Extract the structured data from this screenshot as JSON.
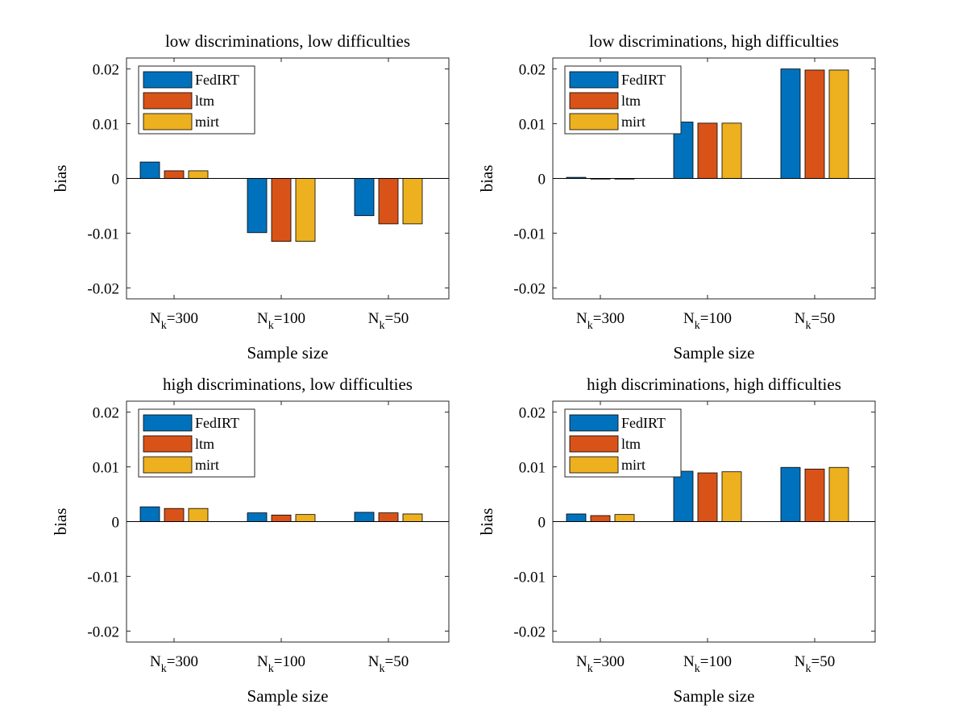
{
  "figure": {
    "xlabel": "Sample size",
    "ylabel": "bias"
  },
  "colors": {
    "FedIRT": "#0072BD",
    "ltm": "#D95319",
    "mirt": "#EDB120"
  },
  "chart_data": [
    {
      "type": "bar",
      "title": "low discriminations, low difficulties",
      "xlabel": "Sample size",
      "ylabel": "bias",
      "categories": [
        "N_k=300",
        "N_k=100",
        "N_k=50"
      ],
      "category_labels": [
        {
          "base": "N",
          "sub": "k",
          "rest": "=300"
        },
        {
          "base": "N",
          "sub": "k",
          "rest": "=100"
        },
        {
          "base": "N",
          "sub": "k",
          "rest": "=50"
        }
      ],
      "ylim": [
        -0.022,
        0.022
      ],
      "yticks": [
        0.02,
        0.01,
        0,
        -0.01,
        -0.02
      ],
      "ytick_labels": [
        "0.02",
        "0.01",
        "0",
        "-0.01",
        "-0.02"
      ],
      "legend": "top-left",
      "series": [
        {
          "name": "FedIRT",
          "values": [
            0.003,
            -0.0099,
            -0.0068
          ]
        },
        {
          "name": "ltm",
          "values": [
            0.0014,
            -0.0115,
            -0.0083
          ]
        },
        {
          "name": "mirt",
          "values": [
            0.0014,
            -0.0115,
            -0.0083
          ]
        }
      ]
    },
    {
      "type": "bar",
      "title": "low discriminations, high difficulties",
      "xlabel": "Sample size",
      "ylabel": "bias",
      "categories": [
        "N_k=300",
        "N_k=100",
        "N_k=50"
      ],
      "category_labels": [
        {
          "base": "N",
          "sub": "k",
          "rest": "=300"
        },
        {
          "base": "N",
          "sub": "k",
          "rest": "=100"
        },
        {
          "base": "N",
          "sub": "k",
          "rest": "=50"
        }
      ],
      "ylim": [
        -0.022,
        0.022
      ],
      "yticks": [
        0.02,
        0.01,
        0,
        -0.01,
        -0.02
      ],
      "ytick_labels": [
        "0.02",
        "0.01",
        "0",
        "-0.01",
        "-0.02"
      ],
      "legend": "top-left",
      "series": [
        {
          "name": "FedIRT",
          "values": [
            0.0002,
            0.0103,
            0.02
          ]
        },
        {
          "name": "ltm",
          "values": [
            -0.0001,
            0.0101,
            0.0198
          ]
        },
        {
          "name": "mirt",
          "values": [
            -0.0001,
            0.0101,
            0.0198
          ]
        }
      ]
    },
    {
      "type": "bar",
      "title": "high discriminations, low difficulties",
      "xlabel": "Sample size",
      "ylabel": "bias",
      "categories": [
        "N_k=300",
        "N_k=100",
        "N_k=50"
      ],
      "category_labels": [
        {
          "base": "N",
          "sub": "k",
          "rest": "=300"
        },
        {
          "base": "N",
          "sub": "k",
          "rest": "=100"
        },
        {
          "base": "N",
          "sub": "k",
          "rest": "=50"
        }
      ],
      "ylim": [
        -0.022,
        0.022
      ],
      "yticks": [
        0.02,
        0.01,
        0,
        -0.01,
        -0.02
      ],
      "ytick_labels": [
        "0.02",
        "0.01",
        "0",
        "-0.01",
        "-0.02"
      ],
      "legend": "top-left",
      "series": [
        {
          "name": "FedIRT",
          "values": [
            0.0027,
            0.0016,
            0.0017
          ]
        },
        {
          "name": "ltm",
          "values": [
            0.0024,
            0.0012,
            0.0016
          ]
        },
        {
          "name": "mirt",
          "values": [
            0.0024,
            0.0013,
            0.0014
          ]
        }
      ]
    },
    {
      "type": "bar",
      "title": "high discriminations, high difficulties",
      "xlabel": "Sample size",
      "ylabel": "bias",
      "categories": [
        "N_k=300",
        "N_k=100",
        "N_k=50"
      ],
      "category_labels": [
        {
          "base": "N",
          "sub": "k",
          "rest": "=300"
        },
        {
          "base": "N",
          "sub": "k",
          "rest": "=100"
        },
        {
          "base": "N",
          "sub": "k",
          "rest": "=50"
        }
      ],
      "ylim": [
        -0.022,
        0.022
      ],
      "yticks": [
        0.02,
        0.01,
        0,
        -0.01,
        -0.02
      ],
      "ytick_labels": [
        "0.02",
        "0.01",
        "0",
        "-0.01",
        "-0.02"
      ],
      "legend": "top-left",
      "series": [
        {
          "name": "FedIRT",
          "values": [
            0.0014,
            0.0092,
            0.0099
          ]
        },
        {
          "name": "ltm",
          "values": [
            0.0011,
            0.0089,
            0.0096
          ]
        },
        {
          "name": "mirt",
          "values": [
            0.0013,
            0.0091,
            0.0099
          ]
        }
      ]
    }
  ]
}
